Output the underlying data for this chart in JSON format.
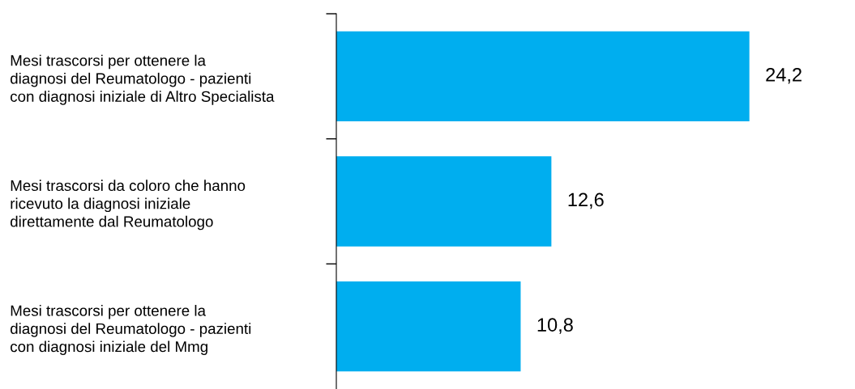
{
  "chart_data": {
    "type": "bar",
    "orientation": "horizontal",
    "categories": [
      "Mesi trascorsi per ottenere la\ndiagnosi del Reumatologo - pazienti\ncon diagnosi iniziale di Altro Specialista",
      "Mesi trascorsi da coloro che hanno\nricevuto la diagnosi iniziale\ndirettamente dal Reumatologo",
      "Mesi trascorsi per ottenere la\ndiagnosi del Reumatologo - pazienti\ncon diagnosi iniziale del Mmg"
    ],
    "values": [
      24.2,
      12.6,
      10.8
    ],
    "value_labels": [
      "24,2",
      "12,6",
      "10,8"
    ],
    "color": "#00aeef",
    "tick_labels": "y",
    "grid": false,
    "legend": false
  }
}
